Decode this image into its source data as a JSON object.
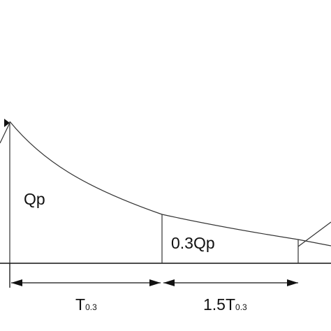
{
  "labels": {
    "peak": "Qp",
    "recession": "0.3Qp",
    "interval1_main": "T",
    "interval1_sub": "0.3",
    "interval2_main": "1.5T",
    "interval2_sub": "0.3"
  }
}
